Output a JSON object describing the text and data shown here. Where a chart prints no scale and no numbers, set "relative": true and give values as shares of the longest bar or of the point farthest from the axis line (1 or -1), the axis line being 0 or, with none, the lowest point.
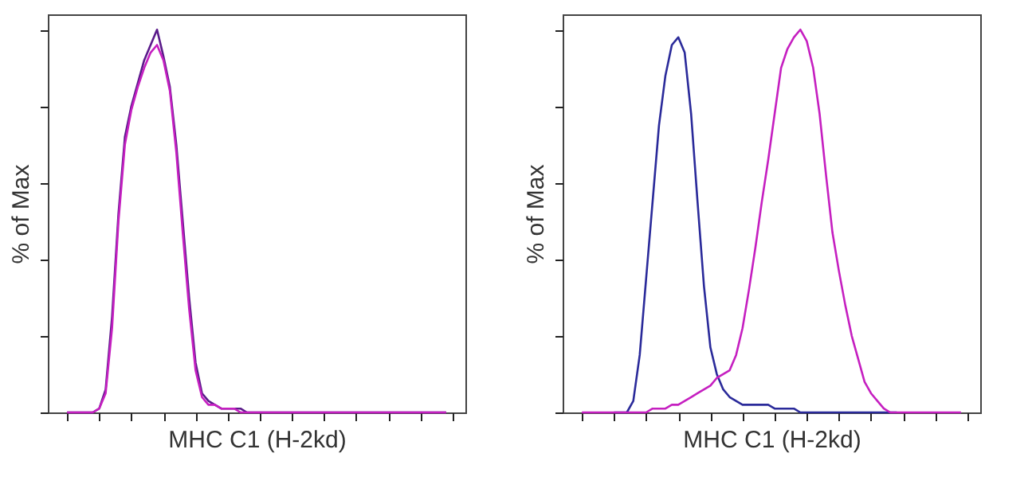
{
  "chart_data": [
    {
      "type": "line",
      "relative": true,
      "xlabel": "MHC C1 (H-2kd)",
      "ylabel": "% of Max",
      "tick_labels": false,
      "legend": false,
      "grid": false,
      "categories": [
        null,
        null,
        null,
        null,
        null,
        null,
        null,
        null,
        null,
        null,
        null,
        null,
        null,
        null,
        null,
        null,
        null,
        null,
        null,
        null,
        null,
        null,
        null,
        null,
        null,
        null,
        null,
        null,
        null,
        null,
        null,
        null,
        null,
        null,
        null,
        null,
        null,
        null,
        null,
        null,
        null,
        null,
        null,
        null,
        null,
        null,
        null,
        null,
        null,
        null,
        null,
        null,
        null,
        null,
        null,
        null,
        null,
        null,
        null,
        null
      ],
      "series": [
        {
          "color": "#5a1a8a",
          "values": [
            0,
            0,
            0,
            0,
            0,
            0.01,
            0.06,
            0.25,
            0.52,
            0.72,
            0.8,
            0.86,
            0.92,
            0.96,
            1.0,
            0.93,
            0.85,
            0.7,
            0.5,
            0.3,
            0.13,
            0.05,
            0.03,
            0.02,
            0.01,
            0.01,
            0.01,
            0.01,
            0,
            0,
            0,
            0,
            0,
            0,
            0,
            0,
            0,
            0,
            0,
            0,
            0,
            0,
            0,
            0,
            0,
            0,
            0,
            0,
            0,
            0,
            0,
            0,
            0,
            0,
            0,
            0,
            0,
            0,
            0,
            0
          ]
        },
        {
          "color": "#c51fc0",
          "values": [
            0,
            0,
            0,
            0,
            0,
            0.01,
            0.05,
            0.22,
            0.5,
            0.7,
            0.79,
            0.85,
            0.9,
            0.94,
            0.96,
            0.92,
            0.84,
            0.68,
            0.47,
            0.27,
            0.11,
            0.04,
            0.02,
            0.02,
            0.01,
            0.01,
            0.01,
            0,
            0,
            0,
            0,
            0,
            0,
            0,
            0,
            0,
            0,
            0,
            0,
            0,
            0,
            0,
            0,
            0,
            0,
            0,
            0,
            0,
            0,
            0,
            0,
            0,
            0,
            0,
            0,
            0,
            0,
            0,
            0,
            0
          ]
        }
      ]
    },
    {
      "type": "line",
      "relative": true,
      "xlabel": "MHC C1 (H-2kd)",
      "ylabel": "% of Max",
      "tick_labels": false,
      "legend": false,
      "grid": false,
      "categories": [
        null,
        null,
        null,
        null,
        null,
        null,
        null,
        null,
        null,
        null,
        null,
        null,
        null,
        null,
        null,
        null,
        null,
        null,
        null,
        null,
        null,
        null,
        null,
        null,
        null,
        null,
        null,
        null,
        null,
        null,
        null,
        null,
        null,
        null,
        null,
        null,
        null,
        null,
        null,
        null,
        null,
        null,
        null,
        null,
        null,
        null,
        null,
        null,
        null,
        null,
        null,
        null,
        null,
        null,
        null,
        null,
        null,
        null,
        null,
        null
      ],
      "series": [
        {
          "color": "#2a2a9a",
          "values": [
            null,
            null,
            null,
            null,
            null,
            0,
            0,
            0,
            0.03,
            0.15,
            0.35,
            0.55,
            0.75,
            0.88,
            0.96,
            0.98,
            0.94,
            0.78,
            0.55,
            0.33,
            0.17,
            0.1,
            0.06,
            0.04,
            0.03,
            0.02,
            0.02,
            0.02,
            0.02,
            0.02,
            0.01,
            0.01,
            0.01,
            0.01,
            0,
            0,
            0,
            0,
            0,
            0,
            0,
            0,
            0,
            0,
            0,
            0,
            0,
            0,
            0,
            0,
            null,
            null,
            null,
            null,
            null,
            null,
            null,
            null,
            null,
            null
          ]
        },
        {
          "color": "#c51fc0",
          "values": [
            0,
            0,
            0,
            0,
            0,
            0,
            0,
            0,
            0,
            0,
            0,
            0.01,
            0.01,
            0.01,
            0.02,
            0.02,
            0.03,
            0.04,
            0.05,
            0.06,
            0.07,
            0.09,
            0.1,
            0.11,
            0.15,
            0.22,
            0.32,
            0.43,
            0.55,
            0.66,
            0.78,
            0.9,
            0.95,
            0.98,
            1.0,
            0.97,
            0.9,
            0.78,
            0.62,
            0.47,
            0.37,
            0.28,
            0.2,
            0.14,
            0.08,
            0.05,
            0.03,
            0.01,
            0,
            0,
            0,
            0,
            0,
            0,
            0,
            0,
            0,
            0,
            0,
            0
          ]
        }
      ]
    }
  ]
}
